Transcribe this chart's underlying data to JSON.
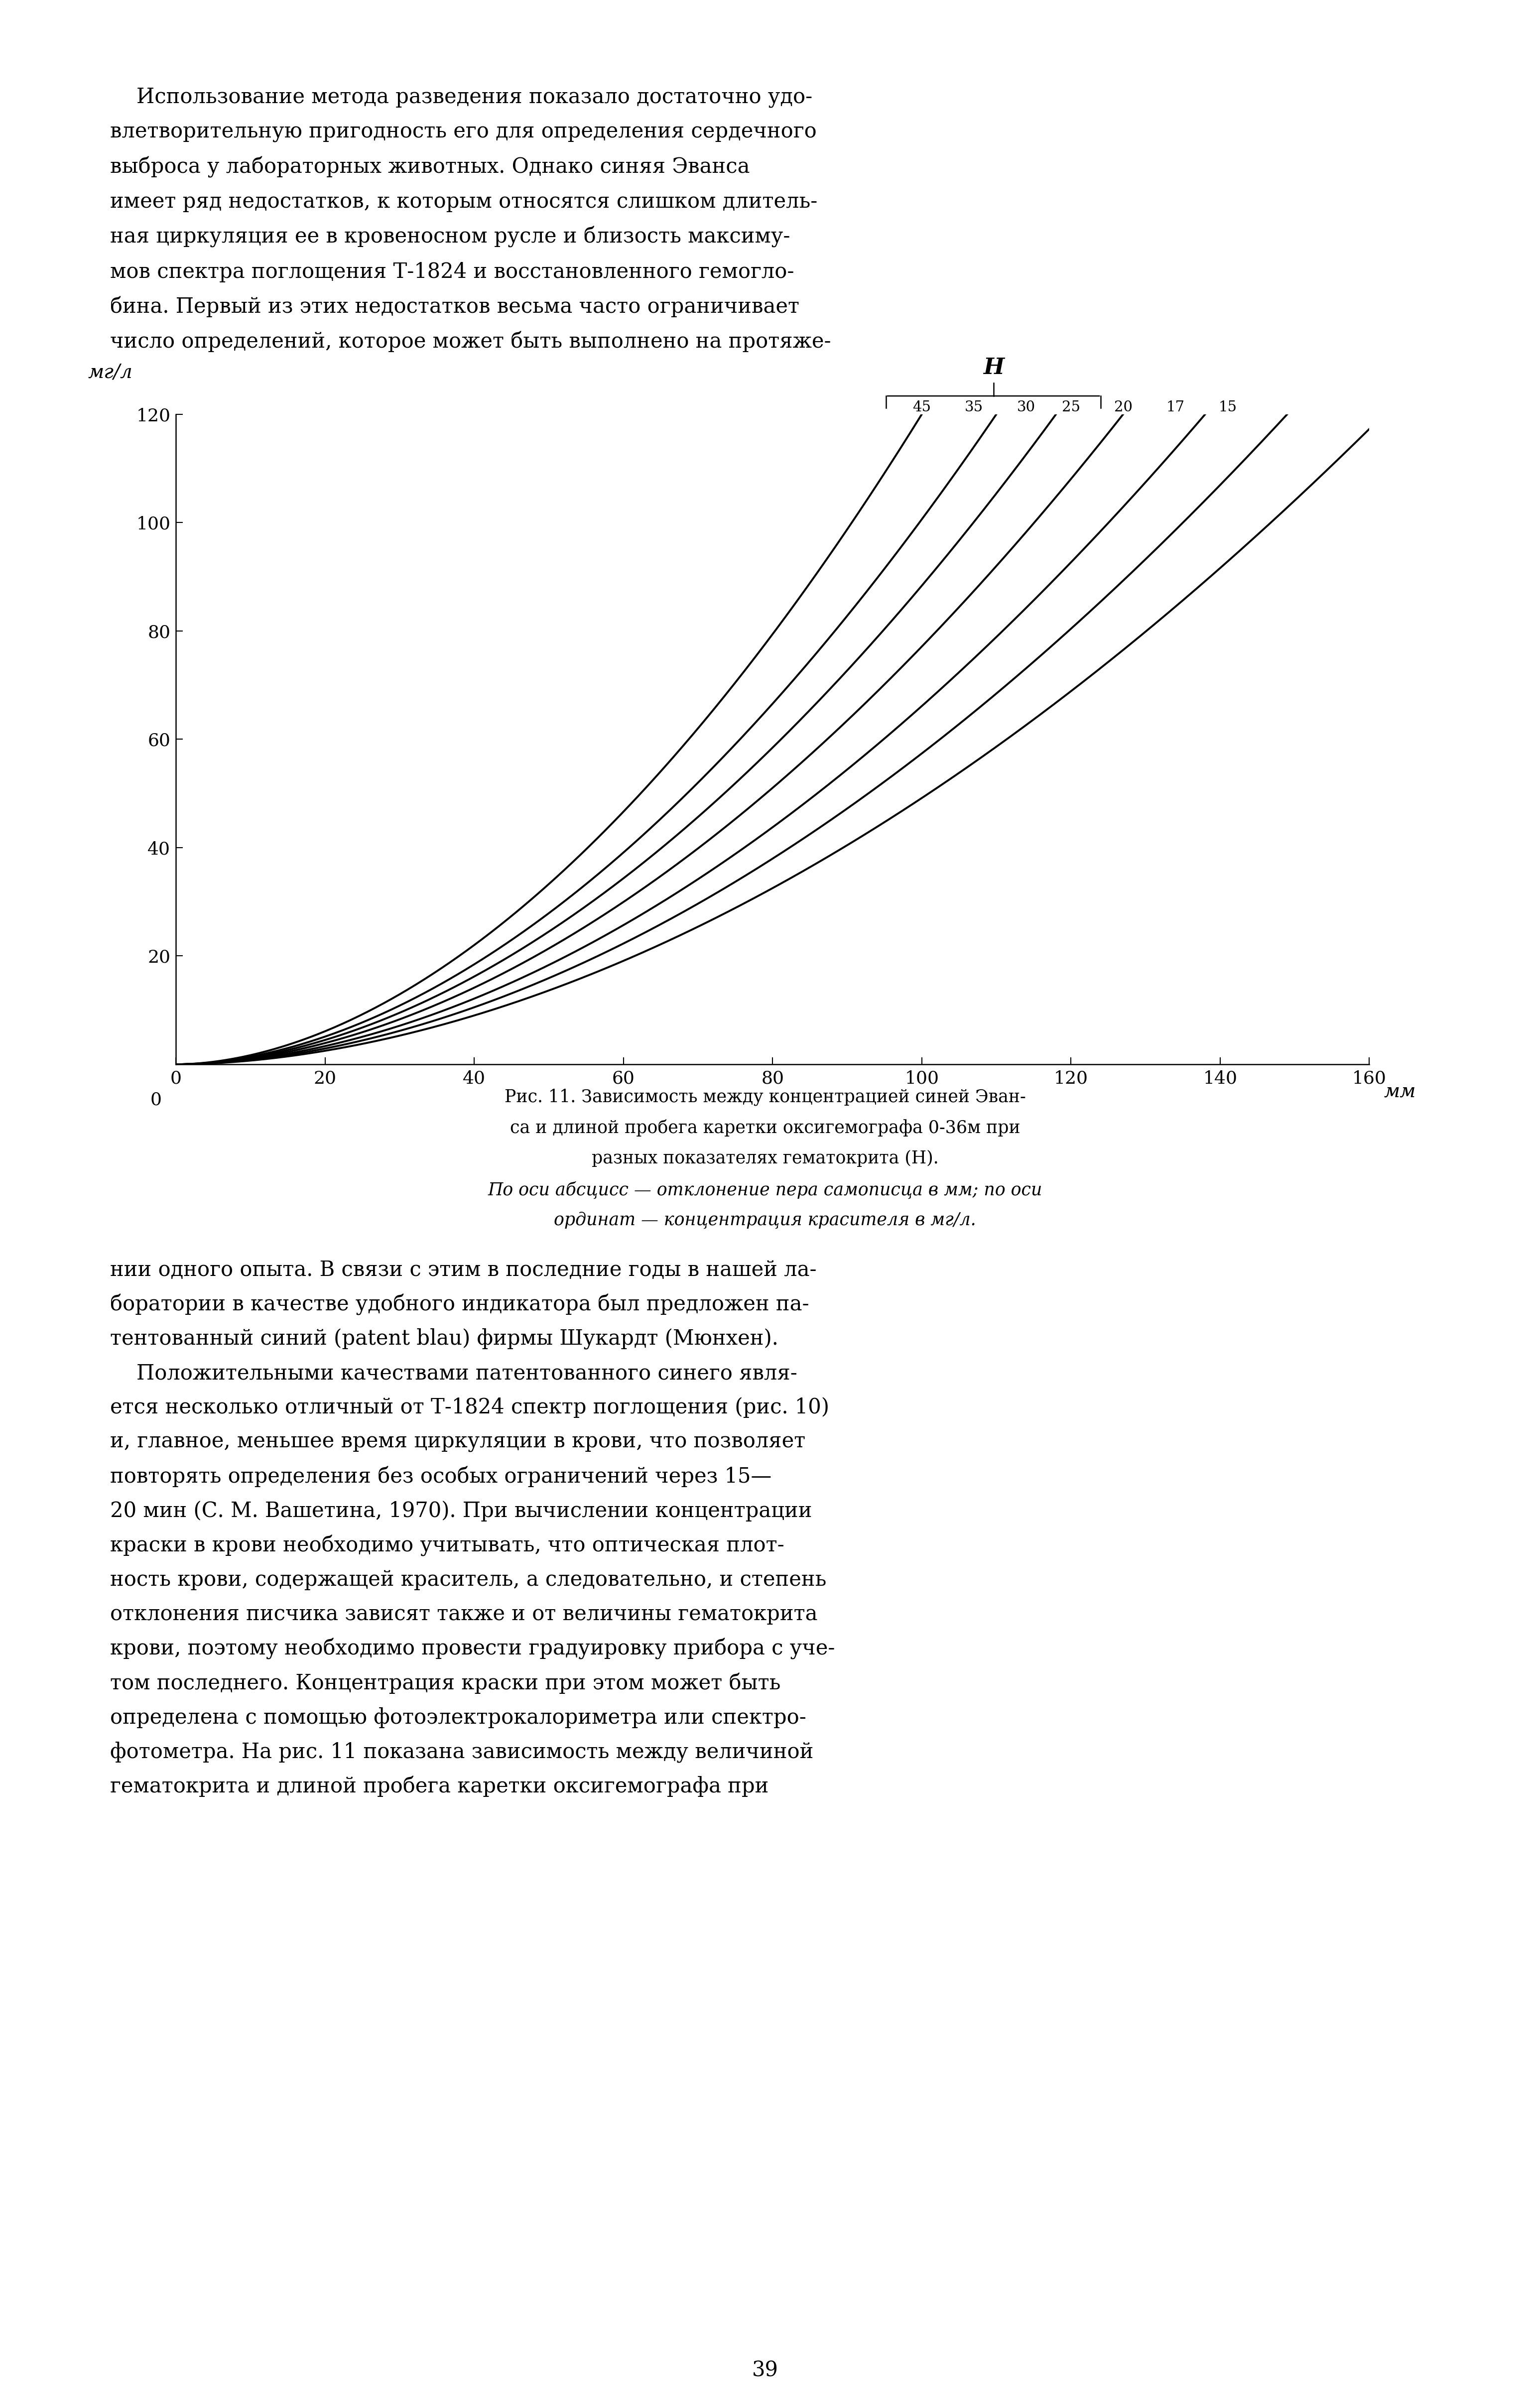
{
  "top_text_lines": [
    "    Использование метода разведения показало достаточно удо-",
    "влетворительную пригодность его для определения сердечного",
    "выброса у лабораторных животных. Однако синяя Эванса",
    "имеет ряд недостатков, к которым относятся слишком длитель-",
    "ная циркуляция ее в кровеносном русле и близость максиму-",
    "мов спектра поглощения Т-1824 и восстановленного гемогло-",
    "бина. Первый из этих недостатков весьма часто ограничивает",
    "число определений, которое может быть выполнено на протяже-"
  ],
  "caption_lines": [
    "Рис. 11. Зависимость между концентрацией синей Эван-",
    "са и длиной пробега каретки оксигемографа 0-36м при",
    "разных показателях гематокрита (Н).",
    "По оси абсцисс — отклонение пера самописца в мм; по оси",
    "ординат — концентрация красителя в мг/л."
  ],
  "caption_italic_lines": [
    false,
    false,
    false,
    true,
    true
  ],
  "bottom_text_lines": [
    "нии одного опыта. В связи с этим в последние годы в нашей ла-",
    "боратории в качестве удобного индикатора был предложен па-",
    "тентованный синий (patent blau) фирмы Шукардт (Мюнхен).",
    "    Положительными качествами патентованного синего явля-",
    "ется несколько отличный от Т-1824 спектр поглощения (рис. 10)",
    "и, главное, меньшее время циркуляции в крови, что позволяет",
    "повторять определения без особых ограничений через 15—",
    "20 мин (С. М. Вашетина, 1970). При вычислении концентрации",
    "краски в крови необходимо учитывать, что оптическая плот-",
    "ность крови, содержащей краситель, а следовательно, и степень",
    "отклонения писчика зависят также и от величины гематокрита",
    "крови, поэтому необходимо провести градуировку прибора с уче-",
    "том последнего. Концентрация краски при этом может быть",
    "определена с помощью фотоэлектрокалориметра или спектро-",
    "фотометра. На рис. 11 показана зависимость между величиной",
    "гематокрита и длиной пробега каретки оксигемографа при"
  ],
  "page_number": "39",
  "hematocrit_values": [
    45,
    35,
    30,
    25,
    20,
    17,
    15
  ],
  "h_labels": [
    "45",
    "35",
    "30",
    "25",
    "20",
    "17",
    "15"
  ],
  "xlabel": "мм",
  "ylabel": "мг/л",
  "xmax": 160,
  "ymax": 120,
  "xticks": [
    0,
    20,
    40,
    60,
    80,
    100,
    120,
    140,
    160
  ],
  "yticks": [
    20,
    40,
    60,
    80,
    100,
    120
  ],
  "x_ends": [
    100,
    110,
    118,
    127,
    138,
    149,
    162
  ],
  "line_color": "#000000",
  "bg_color": "#ffffff"
}
